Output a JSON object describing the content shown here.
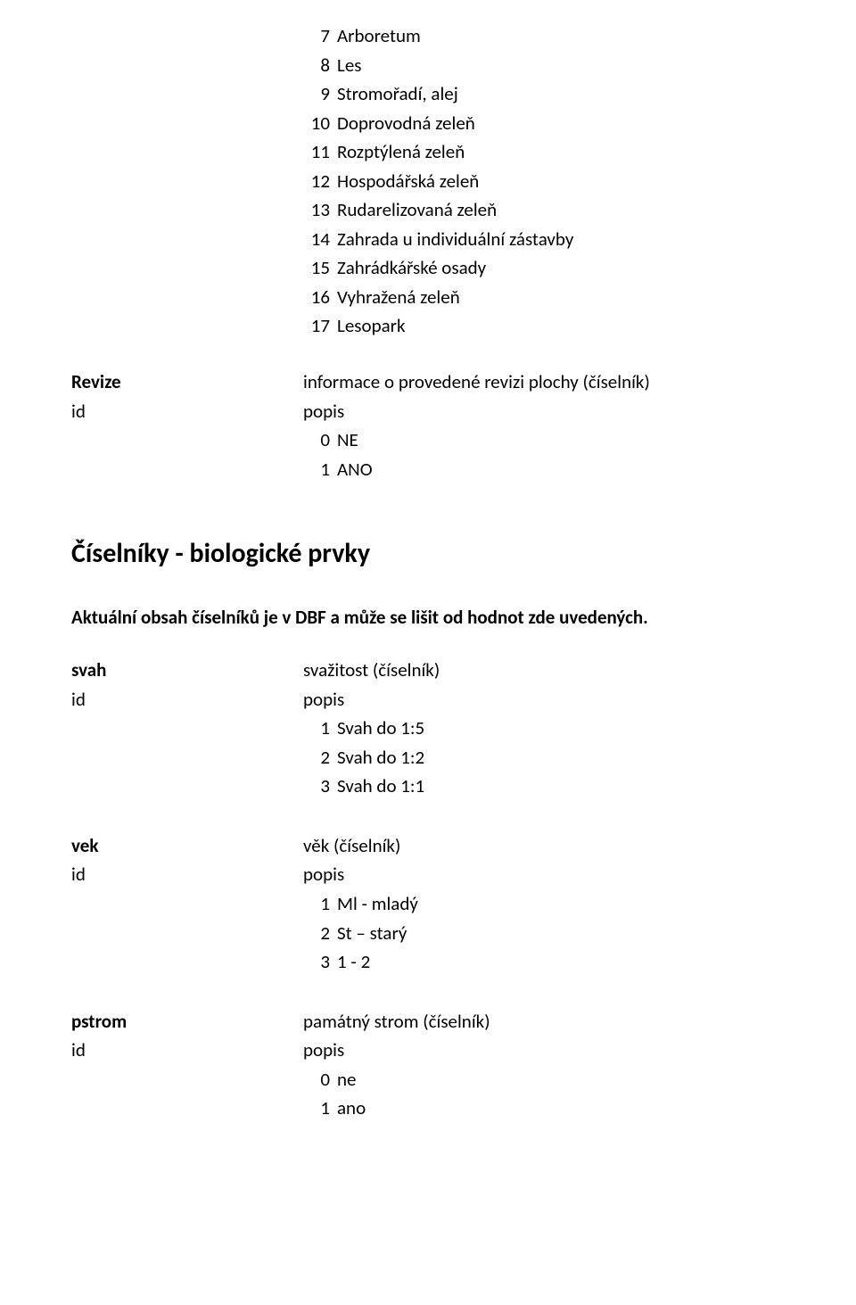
{
  "top_list": [
    {
      "n": "7",
      "t": "Arboretum"
    },
    {
      "n": "8",
      "t": "Les"
    },
    {
      "n": "9",
      "t": "Stromořadí, alej"
    },
    {
      "n": "10",
      "t": "Doprovodná zeleň"
    },
    {
      "n": "11",
      "t": "Rozptýlená zeleň"
    },
    {
      "n": "12",
      "t": "Hospodářská zeleň"
    },
    {
      "n": "13",
      "t": "Rudarelizovaná zeleň"
    },
    {
      "n": "14",
      "t": "Zahrada u individuální zástavby"
    },
    {
      "n": "15",
      "t": "Zahrádkářské osady"
    },
    {
      "n": "16",
      "t": "Vyhražená zeleň"
    },
    {
      "n": "17",
      "t": "Lesopark"
    }
  ],
  "revize": {
    "label": "Revize",
    "id_label": "id",
    "desc": "informace o provedené revizi plochy (číselník)",
    "popis_label": "popis",
    "items": [
      {
        "n": "0",
        "t": "NE"
      },
      {
        "n": "1",
        "t": "ANO"
      }
    ]
  },
  "heading": "Číselníky - biologické prvky",
  "subnote": "Aktuální obsah číselníků je v DBF a může se lišit od hodnot zde uvedených.",
  "svah": {
    "label": "svah",
    "id_label": "id",
    "desc": "svažitost (číselník)",
    "popis_label": "popis",
    "items": [
      {
        "n": "1",
        "t": "Svah do 1:5"
      },
      {
        "n": "2",
        "t": "Svah do 1:2"
      },
      {
        "n": "3",
        "t": "Svah do 1:1"
      }
    ]
  },
  "vek": {
    "label": "vek",
    "id_label": "id",
    "desc": "věk (číselník)",
    "popis_label": "popis",
    "items": [
      {
        "n": "1",
        "t": "Ml - mladý"
      },
      {
        "n": "2",
        "t": "St – starý"
      },
      {
        "n": "3",
        "t": "1 - 2"
      }
    ]
  },
  "pstrom": {
    "label": "pstrom",
    "id_label": "id",
    "desc": "památný strom (číselník)",
    "popis_label": "popis",
    "items": [
      {
        "n": "0",
        "t": "ne"
      },
      {
        "n": "1",
        "t": "ano"
      }
    ]
  }
}
